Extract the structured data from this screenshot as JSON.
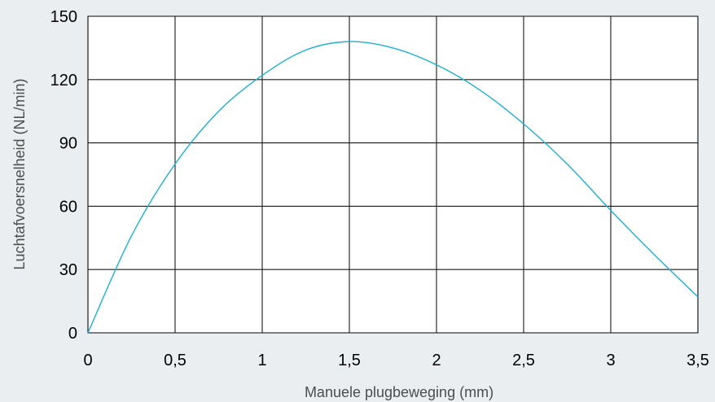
{
  "chart_data": {
    "type": "line",
    "title": "",
    "xlabel": "Manuele plugbeweging (mm)",
    "ylabel": "Luchtafvoersnelheid (NL/min)",
    "xlim": [
      0,
      3.5
    ],
    "ylim": [
      0,
      150
    ],
    "grid": true,
    "x_ticks": [
      {
        "value": 0,
        "label": "0"
      },
      {
        "value": 0.5,
        "label": "0,5"
      },
      {
        "value": 1,
        "label": "1"
      },
      {
        "value": 1.5,
        "label": "1,5"
      },
      {
        "value": 2,
        "label": "2"
      },
      {
        "value": 2.5,
        "label": "2,5"
      },
      {
        "value": 3,
        "label": "3"
      },
      {
        "value": 3.5,
        "label": "3,5"
      }
    ],
    "y_ticks": [
      {
        "value": 0,
        "label": "0"
      },
      {
        "value": 30,
        "label": "30"
      },
      {
        "value": 60,
        "label": "60"
      },
      {
        "value": 90,
        "label": "90"
      },
      {
        "value": 120,
        "label": "120"
      },
      {
        "value": 150,
        "label": "150"
      }
    ],
    "series": [
      {
        "color": "#1ab0dc",
        "x": [
          0,
          0.25,
          0.5,
          0.75,
          1.0,
          1.25,
          1.5,
          1.75,
          2.0,
          2.25,
          2.5,
          2.75,
          3.0,
          3.25,
          3.5
        ],
        "y": [
          0,
          46,
          80,
          105,
          122,
          134,
          138,
          135,
          127,
          115,
          99,
          80,
          58,
          37,
          17
        ]
      }
    ]
  }
}
